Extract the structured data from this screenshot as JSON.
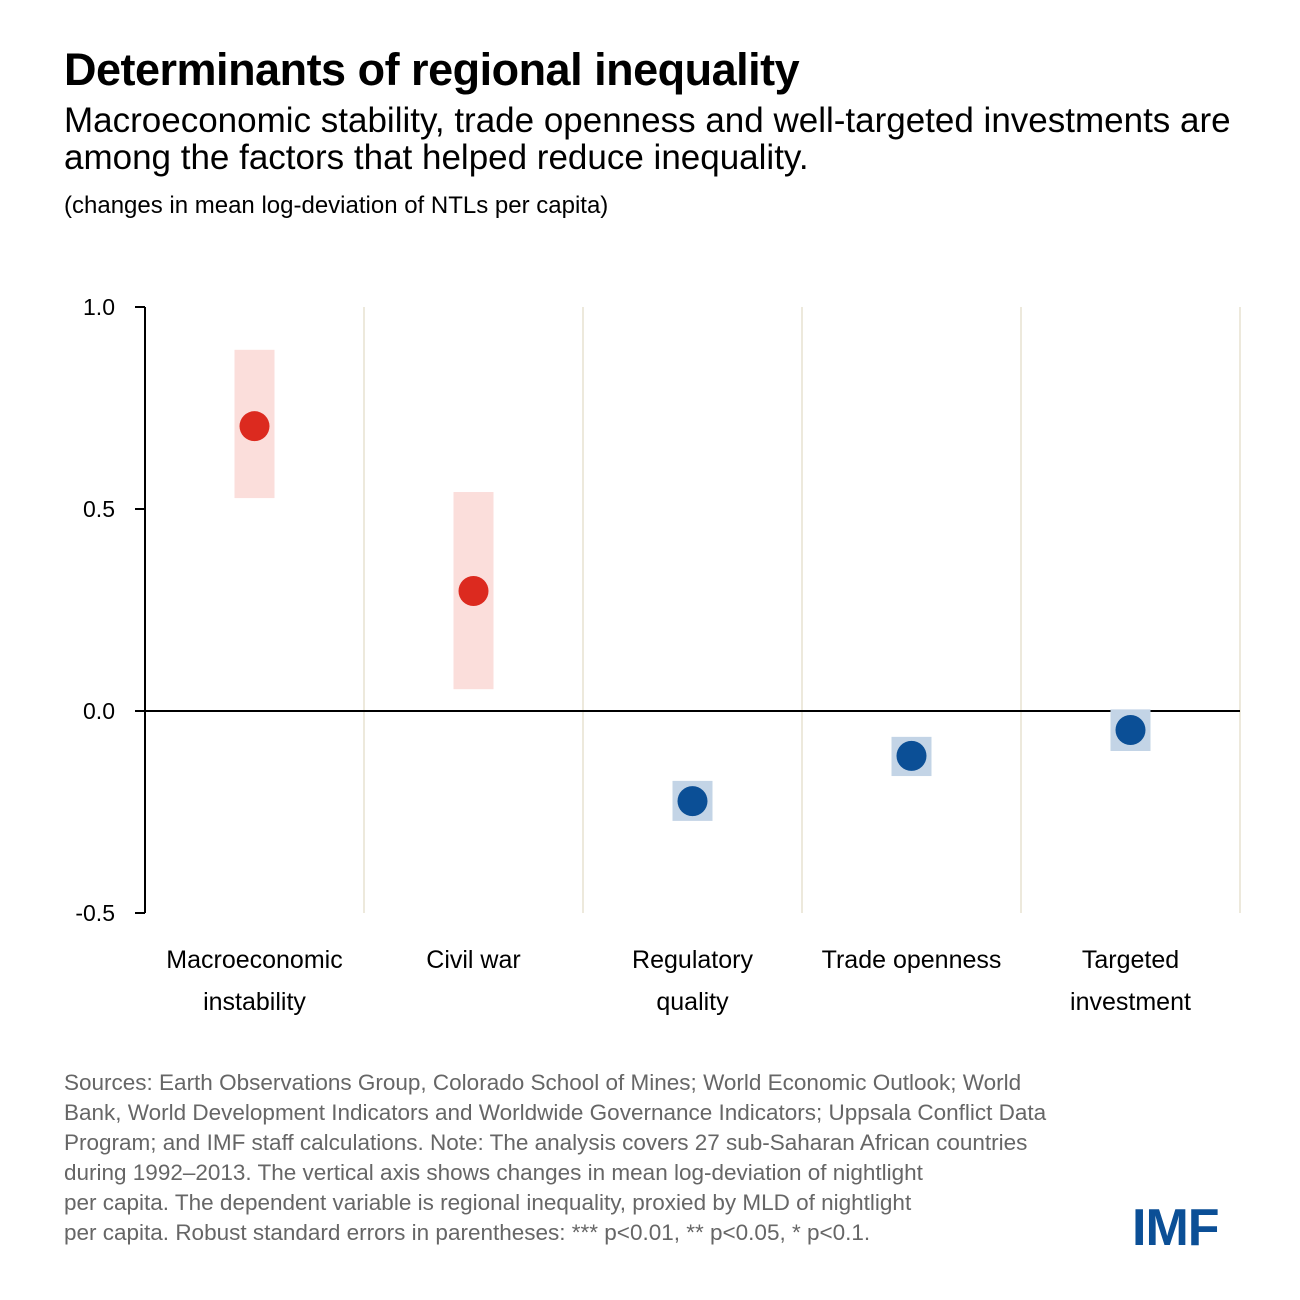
{
  "header": {
    "title": "Determinants of regional inequality",
    "subtitle": "Macroeconomic stability, trade openness and well-targeted investments are among the factors that helped reduce inequality.",
    "unit_note": "(changes in mean log-deviation of NTLs per capita)"
  },
  "chart_data": {
    "type": "scatter",
    "title": "Determinants of regional inequality",
    "ylabel": "changes in mean log-deviation of NTLs per capita",
    "ylim": [
      -0.5,
      1.0
    ],
    "yticks": [
      "1.0",
      "0.5",
      "0.0",
      "-0.5"
    ],
    "ytick_values": [
      1.0,
      0.5,
      0.0,
      -0.5
    ],
    "categories": [
      [
        "Macroeconomic",
        "instability"
      ],
      [
        "Civil war"
      ],
      [
        "Regulatory",
        "quality"
      ],
      [
        "Trade openness"
      ],
      [
        "Targeted",
        "investment"
      ]
    ],
    "values": [
      0.705,
      0.297,
      -0.223,
      -0.111,
      -0.047
    ],
    "ci_low": [
      0.527,
      0.054,
      -0.272,
      -0.161,
      -0.099
    ],
    "ci_high": [
      0.894,
      0.542,
      -0.173,
      -0.064,
      0.004
    ],
    "colors": {
      "positive": "#dc2a1f",
      "positive_band": "#fbdedb",
      "negative": "#0b4f96",
      "negative_band": "#c3d4e6",
      "grid": "#ede9dc"
    }
  },
  "footer": {
    "notes": [
      "Sources: Earth Observations Group, Colorado School of Mines; World Economic Outlook; World",
      "Bank, World Development Indicators and Worldwide Governance Indicators; Uppsala Conflict Data",
      "Program; and IMF staff calculations. Note: The analysis covers 27 sub-Saharan African countries",
      "during 1992–2013. The vertical axis shows changes in mean log-deviation of nightlight",
      "per capita. The dependent variable is regional inequality, proxied by MLD of nightlight",
      "per capita. Robust standard errors in parentheses: *** p<0.01, ** p<0.05, * p<0.1."
    ],
    "logo": "IMF"
  }
}
